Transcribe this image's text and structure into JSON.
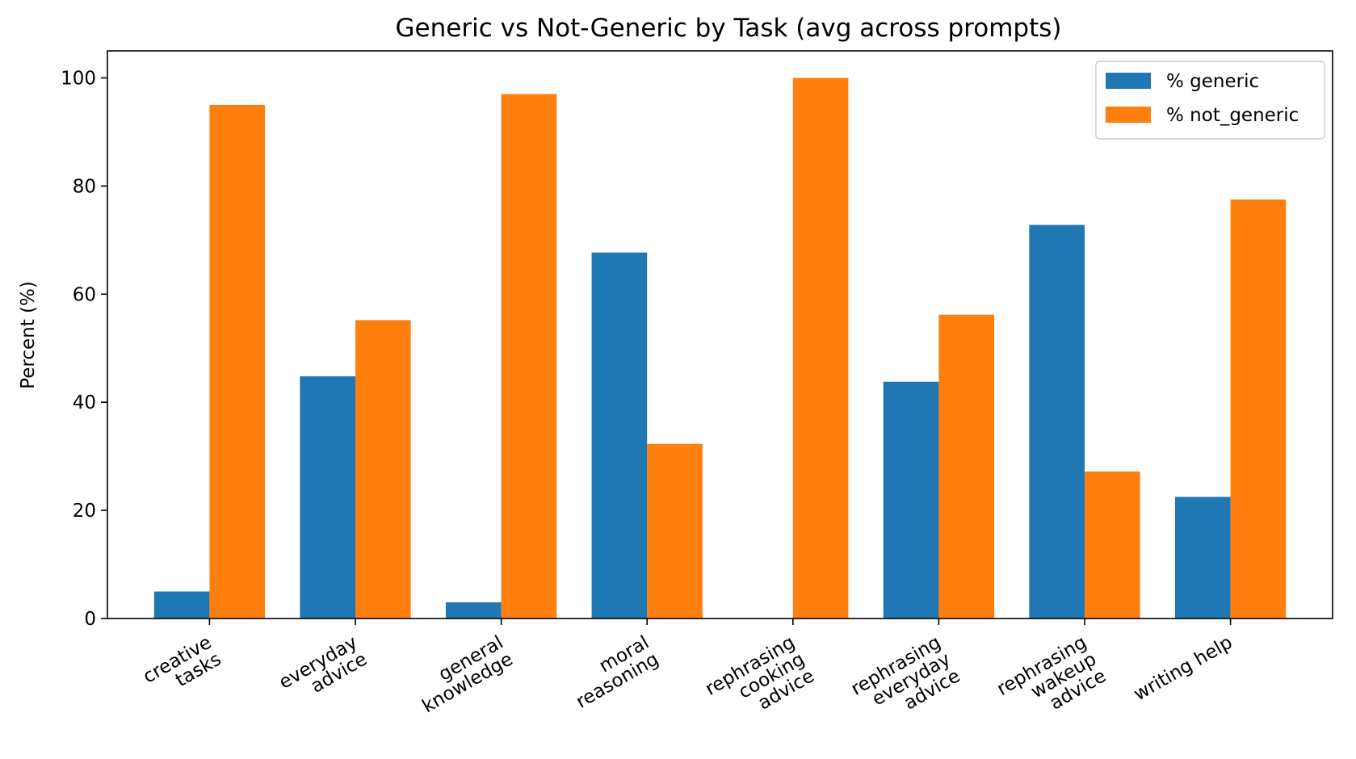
{
  "chart_data": {
    "type": "bar",
    "title": "Generic vs Not-Generic by Task (avg across prompts)",
    "xlabel": "",
    "ylabel": "Percent (%)",
    "ylim": [
      0,
      105
    ],
    "yticks": [
      0,
      20,
      40,
      60,
      80,
      100
    ],
    "grid": false,
    "legend_position": "top-right",
    "categories": [
      "creative\ntasks",
      "everyday\nadvice",
      "general\nknowledge",
      "moral\nreasoning",
      "rephrasing\ncooking\nadvice",
      "rephrasing\neveryday\nadvice",
      "rephrasing\nwakeup\nadvice",
      "writing help"
    ],
    "series": [
      {
        "name": "% generic",
        "color": "#1f77b4",
        "values": [
          5,
          44.8,
          3,
          67.7,
          0,
          43.8,
          72.8,
          22.5
        ]
      },
      {
        "name": "% not_generic",
        "color": "#ff7f0e",
        "values": [
          95,
          55.2,
          97,
          32.3,
          100,
          56.2,
          27.2,
          77.5
        ]
      }
    ]
  }
}
